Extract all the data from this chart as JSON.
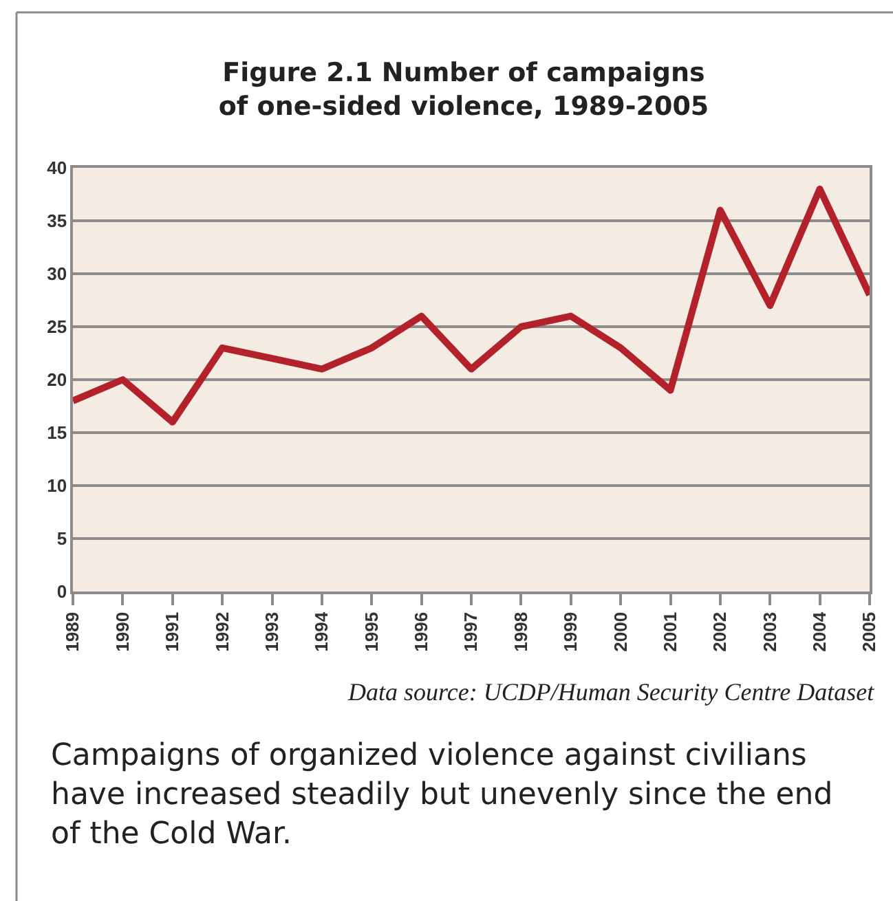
{
  "chart_data": {
    "type": "line",
    "title": "Figure 2.1 Number of campaigns of one-sided violence, 1989-2005",
    "x": [
      1989,
      1990,
      1991,
      1992,
      1993,
      1994,
      1995,
      1996,
      1997,
      1998,
      1999,
      2000,
      2001,
      2002,
      2003,
      2004,
      2005
    ],
    "series": [
      {
        "color": "#b3222b",
        "values": [
          18,
          20,
          16,
          23,
          22,
          21,
          23,
          26,
          21,
          25,
          26,
          23,
          19,
          36,
          27,
          38,
          28
        ]
      }
    ],
    "xlim": [
      1989,
      2005
    ],
    "xticks": [
      1989,
      1990,
      1991,
      1992,
      1993,
      1994,
      1995,
      1996,
      1997,
      1998,
      1999,
      2000,
      2001,
      2002,
      2003,
      2004,
      2005
    ],
    "ylim": [
      0,
      40
    ],
    "yticks": [
      0,
      5,
      10,
      15,
      20,
      25,
      30,
      35,
      40
    ],
    "grid": "y",
    "line_style": "solid",
    "annotations": [
      "Data source: UCDP/Human Security Centre Dataset",
      "Campaigns of organized violence against civilians have increased steadily but unevenly since the end of the Cold War."
    ]
  }
}
